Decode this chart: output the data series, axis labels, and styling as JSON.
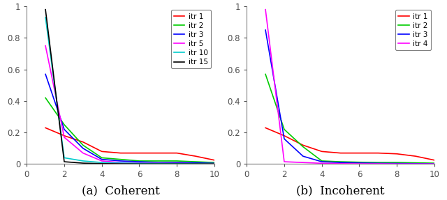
{
  "coherent": {
    "title": "(a)  Coherent",
    "series": [
      {
        "label": "itr 1",
        "color": "#ff0000",
        "x": [
          1,
          2,
          3,
          4,
          5,
          6,
          7,
          8,
          9,
          10
        ],
        "y": [
          0.23,
          0.18,
          0.14,
          0.08,
          0.07,
          0.07,
          0.07,
          0.07,
          0.05,
          0.025
        ]
      },
      {
        "label": "itr 2",
        "color": "#00cc00",
        "x": [
          1,
          2,
          3,
          4,
          5,
          6,
          7,
          8,
          9,
          10
        ],
        "y": [
          0.42,
          0.25,
          0.12,
          0.04,
          0.03,
          0.02,
          0.02,
          0.02,
          0.015,
          0.01
        ]
      },
      {
        "label": "itr 3",
        "color": "#0000ff",
        "x": [
          1,
          2,
          3,
          4,
          5,
          6,
          7,
          8,
          9,
          10
        ],
        "y": [
          0.57,
          0.22,
          0.1,
          0.03,
          0.02,
          0.015,
          0.01,
          0.01,
          0.008,
          0.005
        ]
      },
      {
        "label": "itr 5",
        "color": "#ff00ff",
        "x": [
          1,
          2,
          3,
          4,
          5,
          6,
          7,
          8,
          9,
          10
        ],
        "y": [
          0.75,
          0.17,
          0.07,
          0.02,
          0.01,
          0.007,
          0.005,
          0.004,
          0.003,
          0.002
        ]
      },
      {
        "label": "itr 10",
        "color": "#00cccc",
        "x": [
          1,
          2,
          3,
          4,
          5,
          6,
          7,
          8,
          9,
          10
        ],
        "y": [
          0.93,
          0.04,
          0.02,
          0.01,
          0.007,
          0.005,
          0.004,
          0.003,
          0.002,
          0.001
        ]
      },
      {
        "label": "itr 15",
        "color": "#000000",
        "x": [
          1,
          2,
          3,
          4,
          5,
          6,
          7,
          8,
          9,
          10
        ],
        "y": [
          0.98,
          0.015,
          0.006,
          0.003,
          0.002,
          0.001,
          0.001,
          0.001,
          0.001,
          0.001
        ]
      }
    ]
  },
  "incoherent": {
    "title": "(b)  Incoherent",
    "series": [
      {
        "label": "itr 1",
        "color": "#ff0000",
        "x": [
          1,
          2,
          3,
          4,
          5,
          6,
          7,
          8,
          9,
          10
        ],
        "y": [
          0.23,
          0.18,
          0.12,
          0.08,
          0.07,
          0.07,
          0.07,
          0.065,
          0.05,
          0.025
        ]
      },
      {
        "label": "itr 2",
        "color": "#00cc00",
        "x": [
          1,
          2,
          3,
          4,
          5,
          6,
          7,
          8,
          9,
          10
        ],
        "y": [
          0.57,
          0.22,
          0.11,
          0.02,
          0.015,
          0.012,
          0.01,
          0.01,
          0.008,
          0.006
        ]
      },
      {
        "label": "itr 3",
        "color": "#0000ff",
        "x": [
          1,
          2,
          3,
          4,
          5,
          6,
          7,
          8,
          9,
          10
        ],
        "y": [
          0.85,
          0.16,
          0.05,
          0.015,
          0.01,
          0.007,
          0.005,
          0.004,
          0.003,
          0.002
        ]
      },
      {
        "label": "itr 4",
        "color": "#ff00ff",
        "x": [
          1,
          2,
          3,
          4,
          5,
          6,
          7,
          8,
          9,
          10
        ],
        "y": [
          0.98,
          0.015,
          0.01,
          0.005,
          0.003,
          0.002,
          0.002,
          0.001,
          0.001,
          0.001
        ]
      }
    ]
  },
  "xlim": [
    0,
    10
  ],
  "ylim": [
    0,
    1
  ],
  "xticks": [
    0,
    2,
    4,
    6,
    8,
    10
  ],
  "yticks": [
    0,
    0.2,
    0.4,
    0.6,
    0.8,
    1.0
  ],
  "ytick_labels": [
    "0",
    "0.2",
    "0.4",
    "0.6",
    "0.8",
    "1"
  ],
  "linewidth": 1.2,
  "legend_fontsize": 7.5,
  "label_fontsize": 12,
  "tick_fontsize": 8.5,
  "background_color": "#ffffff",
  "spine_color": "#808080",
  "tick_color": "#505050"
}
